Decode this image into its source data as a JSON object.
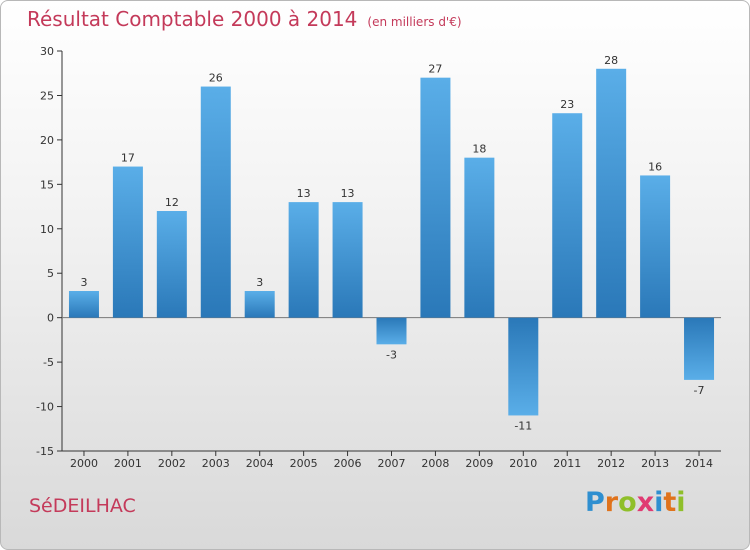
{
  "chart_data": {
    "type": "bar",
    "title": "Résultat Comptable 2000 à 2014",
    "subtitle": "(en milliers d'€)",
    "categories": [
      "2000",
      "2001",
      "2002",
      "2003",
      "2004",
      "2005",
      "2006",
      "2007",
      "2008",
      "2009",
      "2010",
      "2011",
      "2012",
      "2013",
      "2014"
    ],
    "values": [
      3,
      17,
      12,
      26,
      3,
      13,
      13,
      -3,
      27,
      18,
      -11,
      23,
      28,
      16,
      -7
    ],
    "ylim": [
      -15,
      30
    ],
    "yticks": [
      -15,
      -10,
      -5,
      0,
      5,
      10,
      15,
      20,
      25,
      30
    ],
    "xlabel": "",
    "ylabel": "",
    "grid": false
  },
  "footer": {
    "location": "SéDEILHAC",
    "logo_letters": [
      "P",
      "r",
      "o",
      "x",
      "i",
      "t",
      "i"
    ],
    "logo_colors": [
      "#2f8fd0",
      "#e0731c",
      "#8fbf2a",
      "#e03a72",
      "#2f8fd0",
      "#e0731c",
      "#8fbf2a"
    ]
  },
  "colors": {
    "title": "#c43a5a",
    "bar_light": "#5aaee8",
    "bar_dark": "#2a78b8"
  }
}
